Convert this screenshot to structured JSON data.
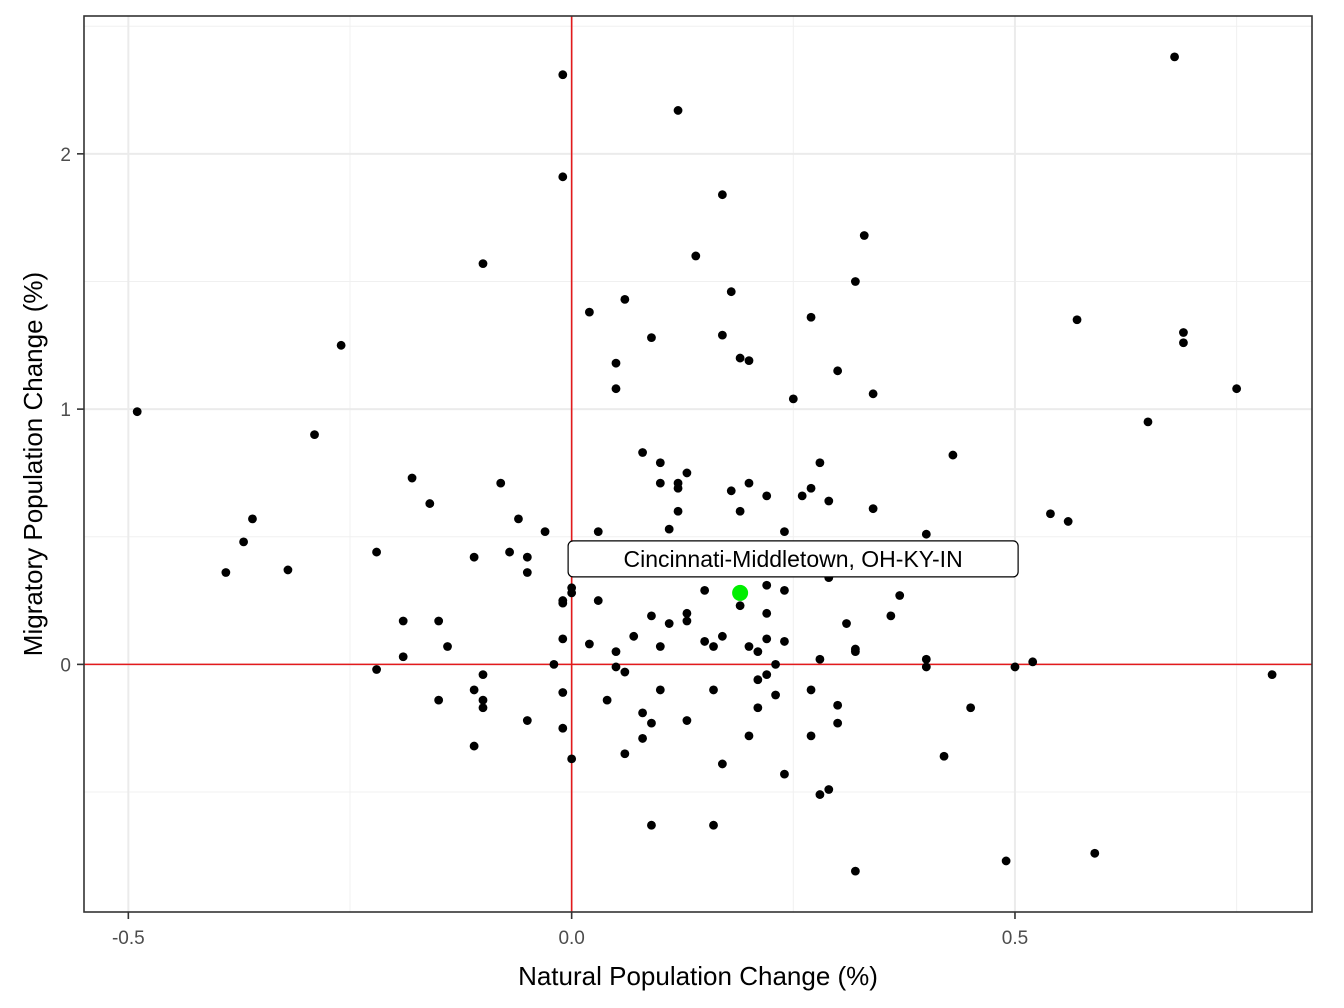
{
  "chart_data": {
    "type": "scatter",
    "title": "",
    "xlabel": "Natural Population Change (%)",
    "ylabel": "Migratory Population Change (%)",
    "xlim": [
      -0.55,
      0.835
    ],
    "ylim": [
      -0.97,
      2.54
    ],
    "x_ticks": [
      -0.5,
      0.0,
      0.5
    ],
    "x_tick_labels": [
      "-0.5",
      "0.0",
      "0.5"
    ],
    "y_ticks": [
      0,
      1,
      2
    ],
    "y_tick_labels": [
      "0",
      "1",
      "2"
    ],
    "grid": true,
    "reference_lines": {
      "x": 0,
      "y": 0,
      "color": "#e31a1c"
    },
    "point_color": "#000000",
    "highlight_color": "#00ee00",
    "highlight": {
      "label": "Cincinnati-Middletown, OH-KY-IN",
      "x": 0.19,
      "y": 0.28
    },
    "points": [
      [
        -0.49,
        0.99
      ],
      [
        -0.39,
        0.36
      ],
      [
        -0.37,
        0.48
      ],
      [
        -0.36,
        0.57
      ],
      [
        -0.32,
        0.37
      ],
      [
        -0.29,
        0.9
      ],
      [
        -0.26,
        1.25
      ],
      [
        -0.22,
        0.44
      ],
      [
        -0.22,
        -0.02
      ],
      [
        -0.19,
        0.17
      ],
      [
        -0.19,
        0.03
      ],
      [
        -0.18,
        0.73
      ],
      [
        -0.16,
        0.63
      ],
      [
        -0.15,
        0.17
      ],
      [
        -0.15,
        -0.14
      ],
      [
        -0.14,
        0.07
      ],
      [
        -0.11,
        0.42
      ],
      [
        -0.11,
        -0.1
      ],
      [
        -0.11,
        -0.32
      ],
      [
        -0.1,
        1.57
      ],
      [
        -0.1,
        -0.04
      ],
      [
        -0.1,
        -0.14
      ],
      [
        -0.1,
        -0.17
      ],
      [
        -0.08,
        0.71
      ],
      [
        -0.07,
        0.44
      ],
      [
        -0.06,
        0.57
      ],
      [
        -0.05,
        0.42
      ],
      [
        -0.05,
        0.36
      ],
      [
        -0.05,
        -0.22
      ],
      [
        -0.03,
        0.52
      ],
      [
        -0.02,
        0.0
      ],
      [
        -0.01,
        2.31
      ],
      [
        -0.01,
        1.91
      ],
      [
        -0.01,
        0.25
      ],
      [
        -0.01,
        0.24
      ],
      [
        -0.01,
        0.1
      ],
      [
        -0.01,
        -0.11
      ],
      [
        -0.01,
        -0.25
      ],
      [
        0.0,
        0.3
      ],
      [
        0.0,
        0.28
      ],
      [
        0.0,
        -0.37
      ],
      [
        0.02,
        1.38
      ],
      [
        0.02,
        0.08
      ],
      [
        0.03,
        0.52
      ],
      [
        0.03,
        0.25
      ],
      [
        0.04,
        -0.14
      ],
      [
        0.05,
        1.18
      ],
      [
        0.05,
        1.08
      ],
      [
        0.05,
        0.05
      ],
      [
        0.05,
        -0.01
      ],
      [
        0.06,
        1.43
      ],
      [
        0.06,
        -0.03
      ],
      [
        0.06,
        -0.35
      ],
      [
        0.07,
        0.11
      ],
      [
        0.08,
        0.83
      ],
      [
        0.08,
        -0.19
      ],
      [
        0.08,
        -0.29
      ],
      [
        0.09,
        1.28
      ],
      [
        0.09,
        0.19
      ],
      [
        0.09,
        -0.23
      ],
      [
        0.09,
        -0.63
      ],
      [
        0.1,
        0.79
      ],
      [
        0.1,
        0.71
      ],
      [
        0.1,
        0.07
      ],
      [
        0.1,
        -0.1
      ],
      [
        0.11,
        0.53
      ],
      [
        0.11,
        0.16
      ],
      [
        0.12,
        2.17
      ],
      [
        0.12,
        0.71
      ],
      [
        0.12,
        0.69
      ],
      [
        0.12,
        0.6
      ],
      [
        0.13,
        0.75
      ],
      [
        0.13,
        0.2
      ],
      [
        0.13,
        0.17
      ],
      [
        0.13,
        -0.22
      ],
      [
        0.14,
        1.6
      ],
      [
        0.15,
        0.29
      ],
      [
        0.15,
        0.09
      ],
      [
        0.16,
        0.07
      ],
      [
        0.16,
        -0.1
      ],
      [
        0.16,
        -0.63
      ],
      [
        0.17,
        1.84
      ],
      [
        0.17,
        1.29
      ],
      [
        0.17,
        0.11
      ],
      [
        0.17,
        -0.39
      ],
      [
        0.18,
        1.46
      ],
      [
        0.18,
        0.68
      ],
      [
        0.19,
        1.2
      ],
      [
        0.19,
        0.6
      ],
      [
        0.19,
        0.23
      ],
      [
        0.2,
        1.19
      ],
      [
        0.2,
        0.71
      ],
      [
        0.2,
        0.07
      ],
      [
        0.2,
        -0.28
      ],
      [
        0.21,
        0.05
      ],
      [
        0.21,
        -0.06
      ],
      [
        0.21,
        -0.17
      ],
      [
        0.22,
        0.66
      ],
      [
        0.22,
        0.31
      ],
      [
        0.22,
        0.2
      ],
      [
        0.22,
        0.1
      ],
      [
        0.22,
        -0.04
      ],
      [
        0.23,
        0.0
      ],
      [
        0.23,
        -0.12
      ],
      [
        0.24,
        0.52
      ],
      [
        0.24,
        0.29
      ],
      [
        0.24,
        0.09
      ],
      [
        0.24,
        -0.43
      ],
      [
        0.25,
        1.04
      ],
      [
        0.26,
        0.66
      ],
      [
        0.27,
        1.36
      ],
      [
        0.27,
        0.69
      ],
      [
        0.27,
        -0.1
      ],
      [
        0.27,
        -0.28
      ],
      [
        0.28,
        0.79
      ],
      [
        0.28,
        0.02
      ],
      [
        0.28,
        -0.51
      ],
      [
        0.29,
        0.64
      ],
      [
        0.29,
        0.34
      ],
      [
        0.29,
        -0.49
      ],
      [
        0.3,
        1.15
      ],
      [
        0.3,
        -0.16
      ],
      [
        0.3,
        -0.23
      ],
      [
        0.31,
        0.16
      ],
      [
        0.32,
        1.5
      ],
      [
        0.32,
        0.06
      ],
      [
        0.32,
        0.05
      ],
      [
        0.32,
        -0.81
      ],
      [
        0.33,
        1.68
      ],
      [
        0.34,
        1.06
      ],
      [
        0.34,
        0.61
      ],
      [
        0.34,
        0.36
      ],
      [
        0.36,
        0.19
      ],
      [
        0.37,
        0.27
      ],
      [
        0.4,
        0.51
      ],
      [
        0.4,
        0.02
      ],
      [
        0.4,
        -0.01
      ],
      [
        0.42,
        -0.36
      ],
      [
        0.43,
        0.82
      ],
      [
        0.45,
        -0.17
      ],
      [
        0.49,
        -0.77
      ],
      [
        0.5,
        -0.01
      ],
      [
        0.52,
        0.01
      ],
      [
        0.54,
        0.59
      ],
      [
        0.56,
        0.56
      ],
      [
        0.57,
        1.35
      ],
      [
        0.59,
        -0.74
      ],
      [
        0.65,
        0.95
      ],
      [
        0.68,
        2.38
      ],
      [
        0.69,
        1.3
      ],
      [
        0.69,
        1.26
      ],
      [
        0.75,
        1.08
      ],
      [
        0.79,
        -0.04
      ]
    ]
  }
}
